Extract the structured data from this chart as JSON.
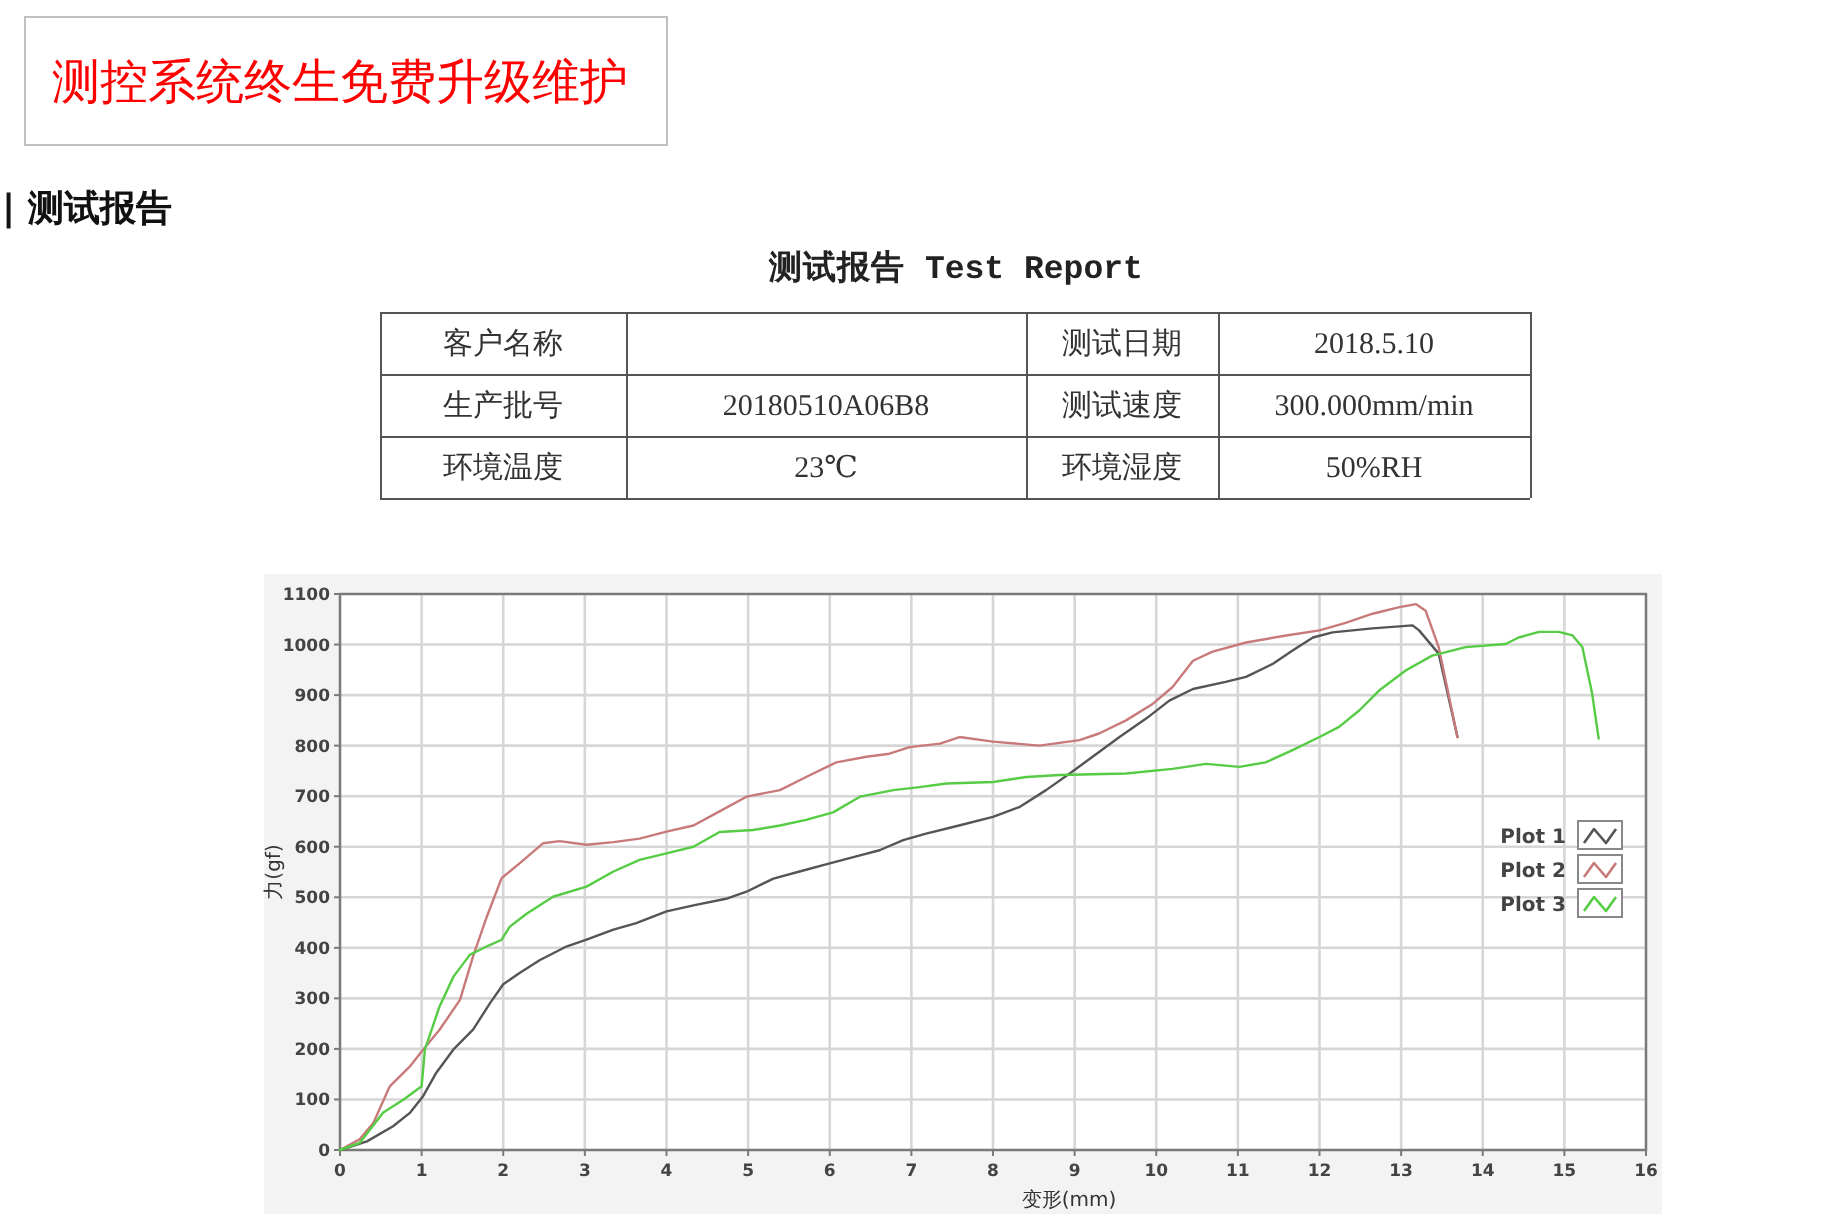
{
  "chart_data": {
    "type": "line",
    "title": "测试报告 Test Report",
    "xlabel": "变形(mm)",
    "ylabel": "力(gf)",
    "annotations": [
      "测控系统终生免费升级维护",
      "| 测试报告",
      "客户名称",
      "测试日期",
      "2018.5.10",
      "生产批号",
      "20180510A06B8",
      "测试速度",
      "300.000mm/min",
      "环境温度",
      "23℃",
      "环境湿度",
      "50%RH"
    ],
    "xlim": [
      0,
      16
    ],
    "xticks": [
      0,
      1,
      2,
      3,
      4,
      5,
      6,
      7,
      8,
      9,
      10,
      11,
      12,
      13,
      14,
      15,
      16
    ],
    "ylim": [
      0,
      1100
    ],
    "yticks": [
      0,
      100,
      200,
      300,
      400,
      500,
      600,
      700,
      800,
      900,
      1000,
      1100
    ],
    "grid": true,
    "legend": "right",
    "marker": "none",
    "line_style": "solid",
    "series": [
      {
        "name": "Plot 1",
        "color": "#555555",
        "x": [
          0,
          0.33,
          0.65,
          0.86,
          1.02,
          1.18,
          1.39,
          1.63,
          1.84,
          2.0,
          2.2,
          2.45,
          2.78,
          3.02,
          3.35,
          3.63,
          4.0,
          4.33,
          4.73,
          4.98,
          5.31,
          5.63,
          6.0,
          6.37,
          6.61,
          6.9,
          7.18,
          7.51,
          8.0,
          8.33,
          8.65,
          8.94,
          9.22,
          9.55,
          9.88,
          10.16,
          10.45,
          10.85,
          11.1,
          11.43,
          11.67,
          11.92,
          12.16,
          12.65,
          13.14,
          13.22,
          13.46,
          13.69
        ],
        "values": [
          0,
          17,
          47,
          74,
          107,
          153,
          199,
          238,
          291,
          328,
          350,
          376,
          403,
          416,
          436,
          449,
          472,
          484,
          497,
          511,
          537,
          551,
          567,
          583,
          593,
          613,
          626,
          639,
          659,
          679,
          712,
          745,
          778,
          817,
          854,
          889,
          912,
          926,
          936,
          962,
          988,
          1014,
          1024,
          1032,
          1038,
          1028,
          982,
          817
        ]
      },
      {
        "name": "Plot 2",
        "color": "#c87a7a",
        "x": [
          0,
          0.24,
          0.41,
          0.61,
          0.86,
          1.02,
          1.22,
          1.47,
          1.63,
          1.8,
          1.98,
          2.2,
          2.49,
          2.69,
          3.02,
          3.35,
          3.67,
          4.0,
          4.33,
          4.65,
          4.98,
          5.39,
          5.71,
          6.08,
          6.45,
          6.73,
          6.98,
          7.35,
          7.59,
          8.0,
          8.57,
          9.06,
          9.3,
          9.63,
          9.96,
          10.2,
          10.45,
          10.69,
          11.1,
          11.59,
          12.0,
          12.32,
          12.65,
          12.98,
          13.18,
          13.3,
          13.46,
          13.69
        ],
        "values": [
          0,
          21,
          54,
          126,
          166,
          199,
          238,
          297,
          383,
          462,
          538,
          567,
          607,
          611,
          604,
          609,
          616,
          630,
          642,
          670,
          699,
          712,
          738,
          767,
          778,
          784,
          797,
          804,
          817,
          808,
          800,
          811,
          824,
          850,
          883,
          916,
          968,
          986,
          1004,
          1018,
          1028,
          1043,
          1061,
          1074,
          1080,
          1067,
          995,
          817
        ]
      },
      {
        "name": "Plot 3",
        "color": "#55cc44",
        "x": [
          0,
          0.24,
          0.53,
          0.78,
          1.0,
          1.04,
          1.22,
          1.39,
          1.59,
          1.8,
          1.98,
          2.08,
          2.29,
          2.61,
          3.02,
          3.35,
          3.67,
          4.0,
          4.33,
          4.65,
          5.06,
          5.39,
          5.71,
          6.04,
          6.37,
          6.78,
          7.1,
          7.43,
          8.0,
          8.41,
          8.82,
          9.63,
          10.2,
          10.61,
          11.02,
          11.34,
          11.67,
          12.0,
          12.24,
          12.49,
          12.73,
          13.06,
          13.38,
          13.79,
          14.28,
          14.44,
          14.69,
          14.93,
          15.1,
          15.22,
          15.34,
          15.42
        ],
        "values": [
          0,
          14,
          74,
          100,
          126,
          199,
          284,
          343,
          386,
          403,
          416,
          442,
          468,
          501,
          521,
          551,
          574,
          587,
          600,
          629,
          633,
          642,
          653,
          668,
          699,
          712,
          718,
          725,
          728,
          738,
          742,
          745,
          754,
          764,
          758,
          767,
          791,
          817,
          837,
          870,
          909,
          949,
          978,
          995,
          1001,
          1014,
          1025,
          1025,
          1018,
          995,
          903,
          814
        ]
      }
    ]
  }
}
